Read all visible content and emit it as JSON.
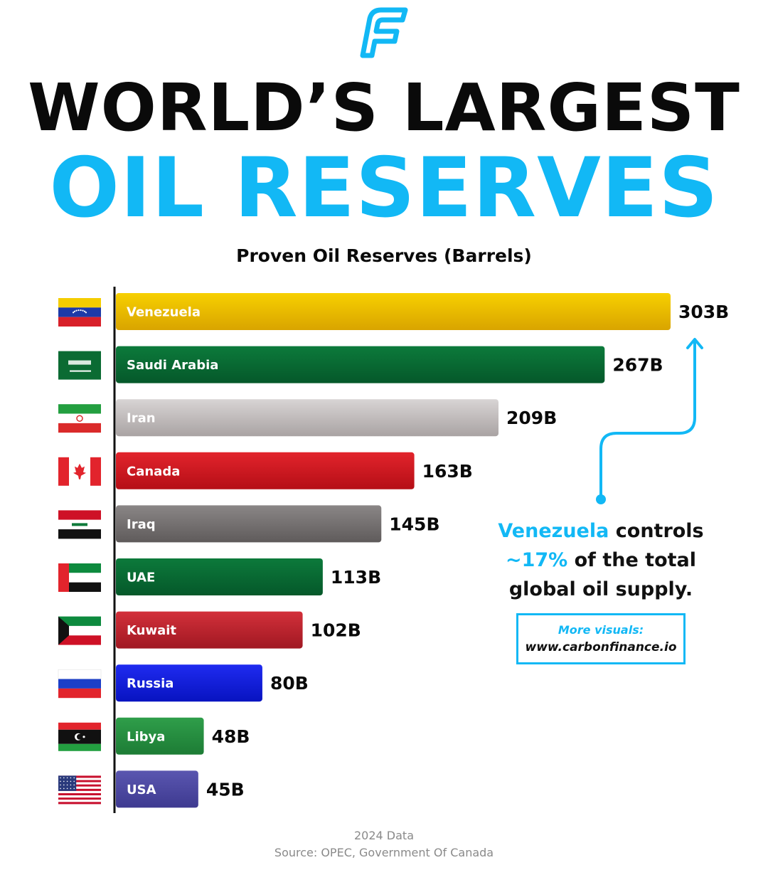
{
  "title": {
    "line1": "WORLD’S LARGEST",
    "line2": "OIL RESERVES"
  },
  "colors": {
    "accent": "#12b8f5",
    "text": "#0a0a0a"
  },
  "chart_data": {
    "type": "bar",
    "orientation": "horizontal",
    "title": "Proven Oil Reserves (Barrels)",
    "categories": [
      "Venezuela",
      "Saudi Arabia",
      "Iran",
      "Canada",
      "Iraq",
      "UAE",
      "Kuwait",
      "Russia",
      "Libya",
      "USA"
    ],
    "values": [
      303,
      267,
      209,
      163,
      145,
      113,
      102,
      80,
      48,
      45
    ],
    "value_labels": [
      "303B",
      "267B",
      "209B",
      "163B",
      "145B",
      "113B",
      "102B",
      "80B",
      "48B",
      "45B"
    ],
    "bar_colors": [
      [
        "#f7d000",
        "#d9a400"
      ],
      [
        "#0c7a3b",
        "#05582a"
      ],
      [
        "#d8d4d4",
        "#a9a3a3"
      ],
      [
        "#e2242c",
        "#b50e16"
      ],
      [
        "#8a8686",
        "#5f5b5b"
      ],
      [
        "#0c7a3b",
        "#05582a"
      ],
      [
        "#d3303a",
        "#a01822"
      ],
      [
        "#1f2bf0",
        "#0813c0"
      ],
      [
        "#2f9e4a",
        "#1d7c35"
      ],
      [
        "#5a56b0",
        "#3e3a90"
      ]
    ],
    "flags": [
      "venezuela-flag",
      "saudi-arabia-flag",
      "iran-flag",
      "canada-flag",
      "iraq-flag",
      "uae-flag",
      "kuwait-flag",
      "russia-flag",
      "libya-flag",
      "usa-flag"
    ],
    "xlim": [
      0,
      303
    ],
    "grid": false,
    "legend": "none"
  },
  "annotation": {
    "part1": "Venezuela",
    "part2": " controls",
    "part3": "~17%",
    "part4": " of the total",
    "part5": "global oil supply."
  },
  "visuals_box": {
    "line1": "More visuals:",
    "line2": "www.carbonfinance.io"
  },
  "footer": {
    "year": "2024 Data",
    "source": "Source: OPEC, Government Of Canada"
  }
}
